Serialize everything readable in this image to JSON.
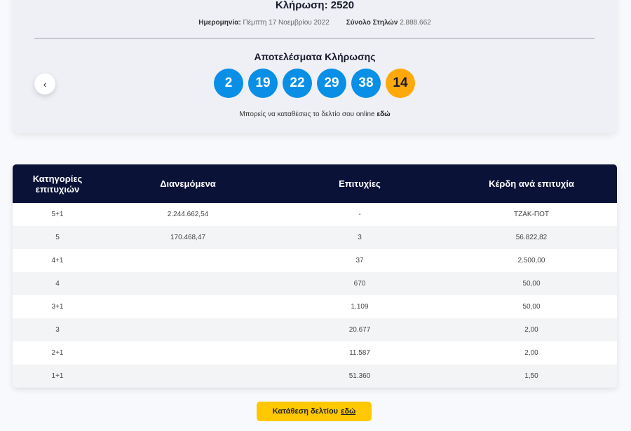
{
  "draw": {
    "title": "Κλήρωση: 2520",
    "date_label": "Ημερομηνία:",
    "date_value": "Πέμπτη 17 Νοεμβρίου 2022",
    "columns_label": "Σύνολο Στηλών",
    "columns_value": "2.888.662"
  },
  "results": {
    "title": "Αποτελέσματα Κλήρωσης",
    "numbers": [
      "2",
      "19",
      "22",
      "29",
      "38"
    ],
    "joker": "14",
    "colors": {
      "main": "#0a8fe6",
      "joker": "#ffa90a"
    }
  },
  "online": {
    "text": "Μπορείς να καταθέσεις το δελτίο σου online",
    "link": "εδώ"
  },
  "nav": {
    "prev_icon": "chevron-left-icon",
    "prev_glyph": "‹"
  },
  "table": {
    "headers": [
      "Κατηγορίες επιτυχιών",
      "Διανεμόμενα",
      "Επιτυχίες",
      "Κέρδη ανά επιτυχία"
    ],
    "rows": [
      [
        "5+1",
        "2.244.662,54",
        "-",
        "ΤΖΑΚ-ΠΟΤ"
      ],
      [
        "5",
        "170.468,47",
        "3",
        "56.822,82"
      ],
      [
        "4+1",
        "",
        "37",
        "2.500,00"
      ],
      [
        "4",
        "",
        "670",
        "50,00"
      ],
      [
        "3+1",
        "",
        "1.109",
        "50,00"
      ],
      [
        "3",
        "",
        "20.677",
        "2,00"
      ],
      [
        "2+1",
        "",
        "11.587",
        "2,00"
      ],
      [
        "1+1",
        "",
        "51.360",
        "1,50"
      ]
    ]
  },
  "cta": {
    "label": "Κατάθεση δελτίου",
    "link": "εδώ"
  }
}
